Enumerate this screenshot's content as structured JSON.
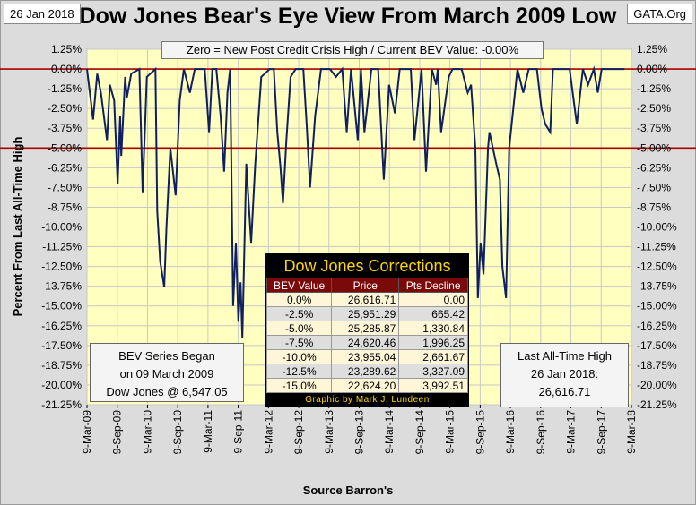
{
  "header": {
    "date": "26 Jan 2018",
    "title": "Dow Jones Bear's Eye View From March 2009 Low",
    "source": "GATA.Org"
  },
  "banner": "Zero = New Post Credit Crisis High / Current BEV Value:  -0.00%",
  "colors": {
    "plot_bg": "#ffffc0",
    "series": "#0f1f60",
    "ref_line": "#aa0000",
    "grid": "#c8c8c8"
  },
  "chart_data": {
    "type": "line",
    "title": "Dow Jones Bear's Eye View From March 2009 Low",
    "xlabel": "Source Barron's",
    "ylabel": "Percent From Last All-Time High",
    "ylim": [
      -21.25,
      1.25
    ],
    "xlim": [
      "2009-03-09",
      "2018-03-09"
    ],
    "grid": true,
    "yticks": [
      "1.25%",
      "0.00%",
      "-1.25%",
      "-2.50%",
      "-3.75%",
      "-5.00%",
      "-6.25%",
      "-7.50%",
      "-8.75%",
      "-10.00%",
      "-11.25%",
      "-12.50%",
      "-13.75%",
      "-15.00%",
      "-16.25%",
      "-17.50%",
      "-18.75%",
      "-20.00%",
      "-21.25%"
    ],
    "xticks": [
      "9-Mar-09",
      "9-Sep-09",
      "9-Mar-10",
      "9-Sep-10",
      "9-Mar-11",
      "9-Sep-11",
      "9-Mar-12",
      "9-Sep-12",
      "9-Mar-13",
      "9-Sep-13",
      "9-Mar-14",
      "9-Sep-14",
      "9-Mar-15",
      "9-Sep-15",
      "9-Mar-16",
      "9-Sep-16",
      "9-Mar-17",
      "9-Sep-17",
      "9-Mar-18"
    ],
    "reference_lines": [
      0,
      -5
    ],
    "series": [
      {
        "x": [
          "2009-03-09",
          "2009-04-15",
          "2009-05-10",
          "2009-06-01",
          "2009-07-08",
          "2009-07-25",
          "2009-08-20",
          "2009-09-10",
          "2009-09-25",
          "2009-10-02",
          "2009-10-25",
          "2009-11-05",
          "2009-12-01",
          "2010-01-19",
          "2010-02-08",
          "2010-03-05",
          "2010-04-26",
          "2010-05-07",
          "2010-05-25",
          "2010-06-18",
          "2010-07-02",
          "2010-07-25",
          "2010-08-26",
          "2010-09-20",
          "2010-10-15",
          "2010-11-20",
          "2010-12-20",
          "2011-01-20",
          "2011-02-18",
          "2011-03-16",
          "2011-04-05",
          "2011-04-29",
          "2011-05-25",
          "2011-06-15",
          "2011-07-05",
          "2011-07-21",
          "2011-08-08",
          "2011-08-25",
          "2011-09-09",
          "2011-09-22",
          "2011-10-03",
          "2011-10-27",
          "2011-11-25",
          "2011-12-20",
          "2012-01-25",
          "2012-03-16",
          "2012-04-10",
          "2012-05-01",
          "2012-05-20",
          "2012-06-04",
          "2012-06-25",
          "2012-07-20",
          "2012-08-20",
          "2012-10-05",
          "2012-10-25",
          "2012-11-15",
          "2012-12-15",
          "2013-01-20",
          "2013-02-25",
          "2013-03-15",
          "2013-04-20",
          "2013-05-28",
          "2013-06-24",
          "2013-07-20",
          "2013-08-30",
          "2013-09-18",
          "2013-10-09",
          "2013-11-20",
          "2013-12-31",
          "2014-02-03",
          "2014-03-07",
          "2014-04-11",
          "2014-05-10",
          "2014-06-25",
          "2014-07-16",
          "2014-08-07",
          "2014-09-19",
          "2014-10-16",
          "2014-11-20",
          "2014-12-16",
          "2014-12-26",
          "2015-01-15",
          "2015-03-02",
          "2015-03-25",
          "2015-05-19",
          "2015-06-25",
          "2015-07-15",
          "2015-08-10",
          "2015-08-25",
          "2015-09-10",
          "2015-09-28",
          "2015-10-25",
          "2015-11-03",
          "2015-12-14",
          "2016-01-05",
          "2016-01-20",
          "2016-02-11",
          "2016-03-01",
          "2016-04-20",
          "2016-05-25",
          "2016-06-27",
          "2016-07-20",
          "2016-08-15",
          "2016-09-12",
          "2016-10-05",
          "2016-11-04",
          "2016-11-20",
          "2016-12-20",
          "2017-01-25",
          "2017-03-01",
          "2017-04-13",
          "2017-05-20",
          "2017-06-20",
          "2017-07-25",
          "2017-08-18",
          "2017-09-10",
          "2017-10-05",
          "2017-11-10",
          "2017-12-10",
          "2018-01-26"
        ],
        "y": [
          0.0,
          -3.2,
          -0.3,
          -1.5,
          -4.5,
          -1.0,
          -2.0,
          -7.3,
          -3.0,
          -5.5,
          -0.5,
          -1.8,
          -0.3,
          0.0,
          -7.8,
          -0.5,
          0.0,
          -9.0,
          -12.2,
          -13.8,
          -10.0,
          -5.0,
          -8.0,
          -2.0,
          0.0,
          -1.5,
          0.0,
          0.0,
          0.0,
          -4.0,
          0.0,
          0.0,
          -3.0,
          -6.5,
          -1.5,
          0.0,
          -15.0,
          -11.0,
          -16.0,
          -13.5,
          -17.0,
          -6.0,
          -11.0,
          -6.0,
          -0.5,
          0.0,
          0.0,
          -4.0,
          -6.2,
          -8.5,
          -4.5,
          -0.5,
          0.0,
          0.0,
          -3.5,
          -7.5,
          -3.0,
          0.0,
          0.0,
          0.0,
          -0.5,
          0.0,
          -4.0,
          0.0,
          -4.5,
          0.0,
          -4.0,
          0.0,
          0.0,
          -7.0,
          -1.0,
          -2.8,
          0.0,
          0.0,
          0.0,
          -4.5,
          0.0,
          -6.5,
          0.0,
          -1.0,
          0.0,
          -4.0,
          -0.5,
          0.0,
          0.0,
          -1.5,
          -1.0,
          -5.0,
          -14.5,
          -11.0,
          -13.0,
          -5.0,
          -4.0,
          -6.0,
          -7.0,
          -12.5,
          -14.5,
          -5.0,
          0.0,
          -1.5,
          0.0,
          0.0,
          0.0,
          -2.5,
          -3.5,
          -4.0,
          0.0,
          0.0,
          0.0,
          0.0,
          -3.5,
          0.0,
          -1.0,
          0.0,
          -1.5,
          0.0,
          0.0,
          0.0,
          0.0,
          0.0
        ]
      }
    ]
  },
  "table": {
    "title": "Dow Jones Corrections",
    "headers": [
      "BEV Value",
      "Price",
      "Pts Decline"
    ],
    "rows": [
      [
        "0.0%",
        "26,616.71",
        "0.00"
      ],
      [
        "-2.5%",
        "25,951.29",
        "665.42"
      ],
      [
        "-5.0%",
        "25,285.87",
        "1,330.84"
      ],
      [
        "-7.5%",
        "24,620.46",
        "1,996.25"
      ],
      [
        "-10.0%",
        "23,955.04",
        "2,661.67"
      ],
      [
        "-12.5%",
        "23,289.62",
        "3,327.09"
      ],
      [
        "-15.0%",
        "22,624.20",
        "3,992.51"
      ]
    ],
    "footer": "Graphic by Mark J. Lundeen"
  },
  "notes": {
    "bev_began": [
      "BEV Series Began",
      "on 09 March 2009",
      "Dow Jones @ 6,547.05"
    ],
    "last_high": [
      "Last All-Time High",
      "26 Jan 2018:",
      "26,616.71"
    ]
  }
}
